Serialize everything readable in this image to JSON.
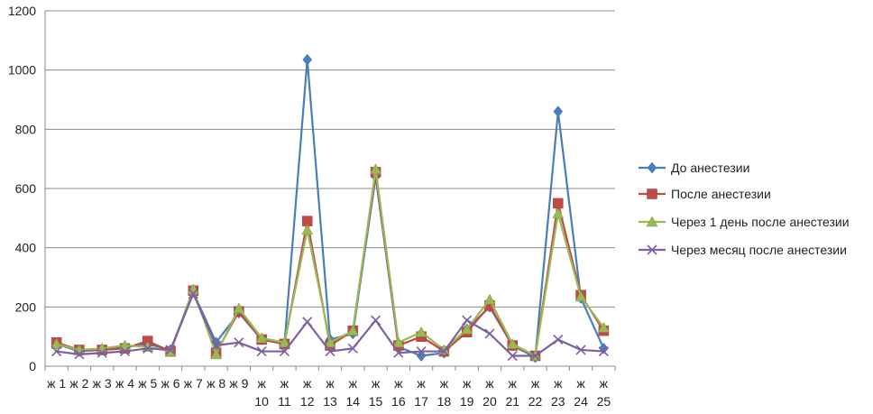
{
  "chart_data": {
    "type": "line",
    "title": "",
    "xlabel": "",
    "ylabel": "",
    "ylim": [
      0,
      1200
    ],
    "yticks": [
      0,
      200,
      400,
      600,
      800,
      1000,
      1200
    ],
    "grid": true,
    "legend_position": "right",
    "categories": [
      [
        "ж",
        "1"
      ],
      [
        "ж",
        "2"
      ],
      [
        "ж",
        "3"
      ],
      [
        "ж",
        "4"
      ],
      [
        "ж",
        "5"
      ],
      [
        "ж",
        "6"
      ],
      [
        "ж",
        "7"
      ],
      [
        "ж",
        "8"
      ],
      [
        "ж",
        "9"
      ],
      [
        "ж",
        "10"
      ],
      [
        "ж",
        "11"
      ],
      [
        "ж",
        "12"
      ],
      [
        "ж",
        "13"
      ],
      [
        "ж",
        "14"
      ],
      [
        "ж",
        "15"
      ],
      [
        "ж",
        "16"
      ],
      [
        "ж",
        "17"
      ],
      [
        "ж",
        "18"
      ],
      [
        "ж",
        "19"
      ],
      [
        "ж",
        "20"
      ],
      [
        "ж",
        "21"
      ],
      [
        "ж",
        "22"
      ],
      [
        "ж",
        "23"
      ],
      [
        "ж",
        "24"
      ],
      [
        "ж",
        "25"
      ]
    ],
    "series": [
      {
        "name": "До анестезии",
        "color": "#4a7ebb",
        "marker": "diamond",
        "values": [
          75,
          50,
          55,
          65,
          75,
          55,
          250,
          80,
          180,
          90,
          75,
          1035,
          90,
          110,
          640,
          65,
          35,
          45,
          125,
          200,
          70,
          30,
          860,
          230,
          60
        ]
      },
      {
        "name": "После анестезии",
        "color": "#be4b48",
        "marker": "square",
        "values": [
          80,
          55,
          55,
          60,
          85,
          50,
          255,
          45,
          185,
          90,
          75,
          490,
          70,
          120,
          655,
          70,
          100,
          50,
          115,
          205,
          70,
          35,
          550,
          240,
          120
        ]
      },
      {
        "name": "Через 1 день после анестезии",
        "color": "#98b954",
        "marker": "triangle",
        "values": [
          75,
          55,
          60,
          70,
          65,
          50,
          260,
          40,
          195,
          95,
          80,
          460,
          80,
          120,
          665,
          80,
          115,
          55,
          125,
          225,
          75,
          35,
          515,
          235,
          130
        ]
      },
      {
        "name": "Через месяц после анестезии",
        "color": "#7d60a0",
        "marker": "x",
        "values": [
          50,
          40,
          45,
          50,
          60,
          55,
          245,
          70,
          80,
          50,
          50,
          150,
          50,
          60,
          155,
          45,
          50,
          50,
          155,
          110,
          35,
          35,
          90,
          55,
          50
        ]
      }
    ]
  }
}
